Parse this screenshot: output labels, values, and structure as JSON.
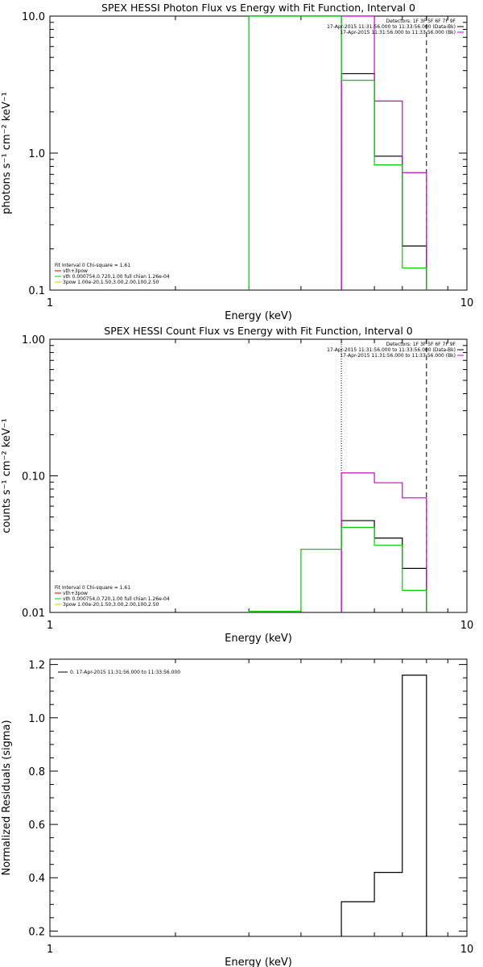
{
  "chart_data": [
    {
      "type": "line",
      "title": "SPEX HESSI Photon Flux vs Energy with Fit Function, Interval 0",
      "xlabel": "Energy (keV)",
      "ylabel": "photons s⁻¹ cm⁻² keV⁻¹",
      "xscale": "log",
      "yscale": "log",
      "xlim": [
        1,
        10
      ],
      "ylim": [
        0.1,
        10.0
      ],
      "x_ticks": [
        {
          "v": 1,
          "label": "1"
        },
        {
          "v": 10,
          "label": "10"
        }
      ],
      "y_ticks": [
        {
          "v": 0.1,
          "label": "0.1"
        },
        {
          "v": 1.0,
          "label": "1.0"
        },
        {
          "v": 10.0,
          "label": "10.0"
        }
      ],
      "legend_topright": [
        {
          "text": "Detectors: 1F 3F 5F 6F 7F 9F",
          "color": ""
        },
        {
          "text": "17-Apr-2015 11:31:56.000 to 11:33:56.000 (Data-Bk)",
          "color": "#000000"
        },
        {
          "text": "17-Apr-2015 11:31:56.000 to 11:33:56.000 (Bk)",
          "color": "#cc00cc"
        }
      ],
      "legend_bottomleft": [
        {
          "text": "Fit Interval 0   Chi-square = 1.61",
          "color": ""
        },
        {
          "text": "vth+3pow",
          "color": "#cc0000"
        },
        {
          "text": "vth 0.000754,0.720,1.00  full chian 1.26e-04",
          "color": "#00cc00"
        },
        {
          "text": "3pow 1.00e-20,1.50,3.00,2.00,100,2.50",
          "color": "#cccc00"
        }
      ],
      "vlines": [
        {
          "x": 5.0,
          "style": "dotted"
        },
        {
          "x": 8.0,
          "style": "dashed"
        }
      ],
      "series": [
        {
          "name": "",
          "color": "#000000",
          "edges": [
            5,
            6,
            7,
            8
          ],
          "values": [
            3.8,
            0.95,
            0.21
          ]
        },
        {
          "name": "",
          "color": "#cc00cc",
          "edges": [
            5,
            6,
            7,
            8
          ],
          "values": [
            10.0,
            2.4,
            0.72
          ]
        },
        {
          "name": "",
          "color": "#00cc00",
          "edges": [
            3,
            4,
            5,
            6,
            7,
            8
          ],
          "values": [
            10.0,
            10.0,
            3.4,
            0.82,
            0.145
          ]
        }
      ]
    },
    {
      "type": "line",
      "title": "SPEX HESSI Count Flux vs Energy with Fit Function, Interval 0",
      "xlabel": "Energy (keV)",
      "ylabel": "counts s⁻¹ cm⁻² keV⁻¹",
      "xscale": "log",
      "yscale": "log",
      "xlim": [
        1,
        10
      ],
      "ylim": [
        0.01,
        1.0
      ],
      "x_ticks": [
        {
          "v": 1,
          "label": "1"
        },
        {
          "v": 10,
          "label": "10"
        }
      ],
      "y_ticks": [
        {
          "v": 0.01,
          "label": "0.01"
        },
        {
          "v": 0.1,
          "label": "0.10"
        },
        {
          "v": 1.0,
          "label": "1.00"
        }
      ],
      "legend_topright": [
        {
          "text": "Detectors: 1F 3F 5F 6F 7F 9F",
          "color": ""
        },
        {
          "text": "17-Apr-2015 11:31:56.000 to 11:33:56.000 (Data-Bk)",
          "color": "#000000"
        },
        {
          "text": "17-Apr-2015 11:31:56.000 to 11:33:56.000 (Bk)",
          "color": "#cc00cc"
        }
      ],
      "legend_bottomleft": [
        {
          "text": "Fit Interval 0   Chi-square = 1.61",
          "color": ""
        },
        {
          "text": "vth+3pow",
          "color": "#cc0000"
        },
        {
          "text": "vth 0.000754,0.720,1.00  full chian 1.26e-04",
          "color": "#00cc00"
        },
        {
          "text": "3pow 1.00e-20,1.50,3.00,2.00,100,2.50",
          "color": "#cccc00"
        }
      ],
      "vlines": [
        {
          "x": 5.0,
          "style": "dotted"
        },
        {
          "x": 8.0,
          "style": "dashed"
        }
      ],
      "series": [
        {
          "name": "",
          "color": "#000000",
          "edges": [
            5,
            6,
            7,
            8
          ],
          "values": [
            0.047,
            0.035,
            0.021
          ]
        },
        {
          "name": "",
          "color": "#cc00cc",
          "edges": [
            5,
            6,
            7,
            8
          ],
          "values": [
            0.105,
            0.089,
            0.069
          ]
        },
        {
          "name": "",
          "color": "#00cc00",
          "edges": [
            3,
            4,
            5,
            6,
            7,
            8
          ],
          "values": [
            0.0102,
            0.029,
            0.042,
            0.031,
            0.0145
          ]
        }
      ]
    },
    {
      "type": "line",
      "title": "",
      "xlabel": "Energy (keV)",
      "ylabel": "Normalized Residuals (sigma)",
      "xscale": "log",
      "yscale": "linear",
      "xlim": [
        1,
        10
      ],
      "ylim": [
        0.18,
        1.22
      ],
      "x_ticks": [
        {
          "v": 1,
          "label": "1"
        },
        {
          "v": 10,
          "label": "10"
        }
      ],
      "y_ticks": [
        {
          "v": 0.2,
          "label": "0.2"
        },
        {
          "v": 0.4,
          "label": "0.4"
        },
        {
          "v": 0.6,
          "label": "0.6"
        },
        {
          "v": 0.8,
          "label": "0.8"
        },
        {
          "v": 1.0,
          "label": "1.0"
        },
        {
          "v": 1.2,
          "label": "1.2"
        }
      ],
      "legend_topleft": [
        {
          "text": "0. 17-Apr-2015 11:31:56.000 to 11:33:56.000",
          "color": "#000000"
        }
      ],
      "vlines": [],
      "series": [
        {
          "name": "",
          "color": "#000000",
          "edges": [
            5,
            6,
            7,
            8
          ],
          "values": [
            0.31,
            0.42,
            1.16
          ]
        }
      ]
    }
  ]
}
